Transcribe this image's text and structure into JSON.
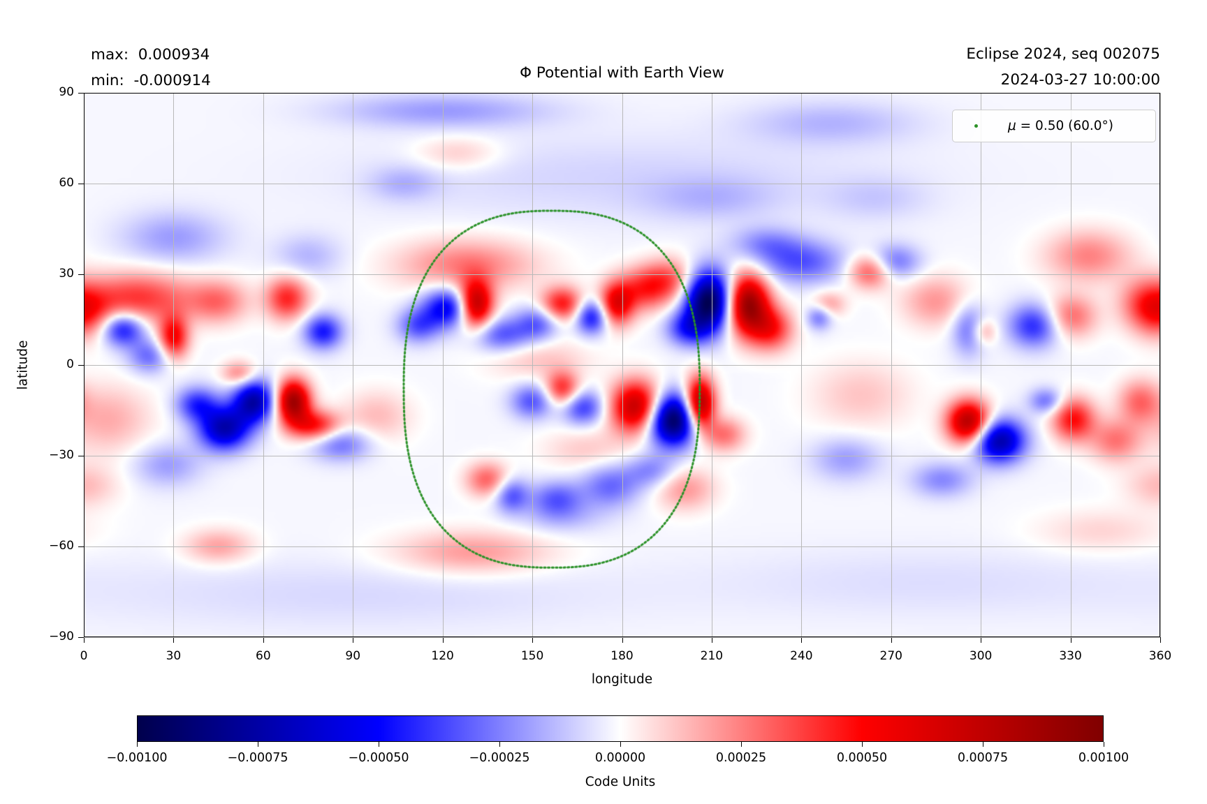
{
  "figure": {
    "title": "Φ Potential with Earth View",
    "annotations": {
      "max_line": "max:  0.000934",
      "min_line": "min:  -0.000914",
      "top_right_line1": "Eclipse 2024, seq 002075",
      "top_right_line2": "2024-03-27 10:00:00"
    },
    "legend": {
      "symbol": "μ",
      "label": " = 0.50 (60.0°)"
    }
  },
  "style": {
    "grid_color": "#b9b9b9",
    "accent_green": "#2b9128",
    "spine_color": "#000000"
  },
  "chart_data": {
    "type": "heatmap",
    "title": "Φ Potential with Earth View",
    "xlabel": "longitude",
    "ylabel": "latitude",
    "xlim": [
      0,
      360
    ],
    "ylim": [
      -90,
      90
    ],
    "grid": true,
    "stats": {
      "max": 0.000934,
      "min": -0.000914
    },
    "xticks": {
      "values": [
        0,
        30,
        60,
        90,
        120,
        150,
        180,
        210,
        240,
        270,
        300,
        330,
        360
      ],
      "labels": [
        "0",
        "30",
        "60",
        "90",
        "120",
        "150",
        "180",
        "210",
        "240",
        "270",
        "300",
        "330",
        "360"
      ]
    },
    "yticks": {
      "values": [
        90,
        60,
        30,
        0,
        -30,
        -60,
        -90
      ],
      "labels": [
        "90",
        "60",
        "30",
        "0",
        "−30",
        "−60",
        "−90"
      ]
    },
    "colorbar": {
      "label": "Code Units",
      "colormap": "seismic",
      "vmin": -0.001,
      "vmax": 0.001,
      "tick_values": [
        -0.001,
        -0.00075,
        -0.0005,
        -0.00025,
        0,
        0.00025,
        0.0005,
        0.00075,
        0.001
      ],
      "tick_labels": [
        "−0.00100",
        "−0.00075",
        "−0.00050",
        "−0.00025",
        "0.00000",
        "0.00025",
        "0.00050",
        "0.00075",
        "0.00100"
      ],
      "stops": [
        [
          0,
          "#00004c"
        ],
        [
          0.25,
          "#0000ff"
        ],
        [
          0.5,
          "#ffffff"
        ],
        [
          0.75,
          "#ff0000"
        ],
        [
          1,
          "#800000"
        ]
      ]
    },
    "earth_view_circle": {
      "mu": "0.50",
      "angle_deg": "60.0",
      "center_lon": 156.5,
      "center_lat": -8,
      "radius_lon_deg": 49.5,
      "radius_lat_deg": 59,
      "squareness": 2.5,
      "color": "#2b9128"
    },
    "field_scale_code_units": 0.001,
    "features_format": [
      "lon_deg",
      "lat_deg",
      "amplitude_rel_-1..1",
      "sigma_lon_deg",
      "sigma_lat_deg"
    ],
    "features": [
      [
        18,
        22,
        0.42,
        13,
        6
      ],
      [
        1,
        17,
        0.3,
        6,
        6
      ],
      [
        13,
        12,
        -0.5,
        5,
        4
      ],
      [
        22,
        3,
        -0.28,
        5,
        4
      ],
      [
        30,
        9,
        0.55,
        3.5,
        5
      ],
      [
        45,
        21,
        0.28,
        7,
        5
      ],
      [
        68,
        22,
        0.45,
        5,
        5
      ],
      [
        80,
        11,
        -0.45,
        4.5,
        4
      ],
      [
        38,
        -13,
        -0.4,
        5,
        4
      ],
      [
        47,
        -21,
        -0.7,
        6,
        5
      ],
      [
        57,
        -12,
        -0.72,
        5,
        5
      ],
      [
        70,
        -12,
        0.9,
        4,
        5
      ],
      [
        77,
        -20,
        0.5,
        6,
        3.5
      ],
      [
        52,
        -3,
        0.28,
        4,
        3
      ],
      [
        86,
        -26,
        -0.28,
        7,
        4
      ],
      [
        8,
        -18,
        0.18,
        10,
        8
      ],
      [
        28,
        -33,
        -0.18,
        8,
        5
      ],
      [
        98,
        -17,
        0.15,
        8,
        6
      ],
      [
        30,
        42,
        -0.18,
        12,
        6
      ],
      [
        75,
        36,
        -0.13,
        8,
        5
      ],
      [
        0,
        -40,
        0.15,
        8,
        5
      ],
      [
        128,
        33,
        0.28,
        16,
        6
      ],
      [
        122,
        19,
        -0.55,
        6,
        4.5
      ],
      [
        131,
        20,
        0.85,
        4,
        5.5
      ],
      [
        112,
        13,
        -0.32,
        5,
        4
      ],
      [
        140,
        10,
        -0.33,
        7,
        4
      ],
      [
        152,
        14,
        -0.3,
        5,
        4
      ],
      [
        160,
        20,
        0.5,
        5,
        4
      ],
      [
        170,
        16,
        -0.5,
        4,
        4
      ],
      [
        178,
        20,
        0.6,
        4,
        5
      ],
      [
        187,
        25,
        0.38,
        6,
        5
      ],
      [
        196,
        28,
        0.33,
        6,
        5
      ],
      [
        209,
        21,
        -1.0,
        5.5,
        7
      ],
      [
        202,
        12,
        -0.38,
        5,
        4
      ],
      [
        222,
        20,
        0.95,
        5,
        7
      ],
      [
        230,
        12,
        0.45,
        5,
        5
      ],
      [
        152,
        2,
        0.13,
        12,
        5
      ],
      [
        240,
        34,
        -0.32,
        10,
        5
      ],
      [
        228,
        40,
        -0.2,
        8,
        4
      ],
      [
        160,
        -8,
        0.45,
        4,
        4
      ],
      [
        150,
        -12,
        -0.33,
        5,
        4
      ],
      [
        167,
        -14,
        -0.38,
        5,
        4
      ],
      [
        185,
        -14,
        0.8,
        6,
        6
      ],
      [
        197,
        -18,
        -1.0,
        6,
        6
      ],
      [
        206,
        -13,
        0.95,
        3.5,
        6
      ],
      [
        214,
        -23,
        0.3,
        5,
        4
      ],
      [
        135,
        -38,
        0.33,
        5,
        4
      ],
      [
        143,
        -43,
        -0.33,
        4,
        4
      ],
      [
        158,
        -44,
        -0.28,
        6,
        4
      ],
      [
        176,
        -40,
        -0.28,
        7,
        5
      ],
      [
        190,
        -35,
        -0.22,
        6,
        4
      ],
      [
        201,
        -41,
        0.22,
        7,
        5
      ],
      [
        168,
        -28,
        0.12,
        10,
        5
      ],
      [
        263,
        31,
        0.38,
        5,
        4
      ],
      [
        271,
        34,
        -0.28,
        6,
        4
      ],
      [
        249,
        20,
        0.22,
        4,
        3
      ],
      [
        246,
        16,
        -0.28,
        3,
        3
      ],
      [
        285,
        21,
        0.22,
        8,
        6
      ],
      [
        296,
        12,
        -0.28,
        4,
        6
      ],
      [
        301,
        11,
        0.22,
        3,
        3
      ],
      [
        318,
        13,
        -0.42,
        6,
        5
      ],
      [
        330,
        16,
        0.32,
        6,
        5
      ],
      [
        336,
        36,
        0.26,
        10,
        6
      ],
      [
        355,
        20,
        0.3,
        6,
        6
      ],
      [
        296,
        -19,
        0.85,
        5,
        5
      ],
      [
        306,
        -25,
        -0.75,
        6,
        5
      ],
      [
        331,
        -18,
        0.5,
        5,
        5
      ],
      [
        322,
        -12,
        -0.28,
        4,
        3
      ],
      [
        287,
        -38,
        -0.22,
        7,
        4
      ],
      [
        260,
        -10,
        0.13,
        12,
        8
      ],
      [
        345,
        -25,
        0.28,
        6,
        5
      ],
      [
        353,
        -12,
        0.28,
        5,
        5
      ],
      [
        255,
        -31,
        -0.18,
        8,
        5
      ],
      [
        120,
        84,
        -0.18,
        25,
        4
      ],
      [
        250,
        80,
        -0.13,
        20,
        5
      ],
      [
        125,
        70,
        0.13,
        10,
        4
      ],
      [
        107,
        60,
        -0.12,
        8,
        4
      ],
      [
        45,
        -60,
        0.2,
        8,
        4
      ],
      [
        130,
        -62,
        0.22,
        18,
        5
      ],
      [
        160,
        -50,
        -0.13,
        10,
        4
      ],
      [
        340,
        -55,
        0.1,
        15,
        5
      ],
      [
        180,
        62,
        -0.07,
        60,
        10
      ],
      [
        90,
        -76,
        -0.06,
        60,
        8
      ],
      [
        280,
        -72,
        -0.05,
        50,
        8
      ],
      [
        210,
        55,
        -0.1,
        15,
        5
      ],
      [
        265,
        55,
        -0.08,
        12,
        5
      ]
    ]
  }
}
